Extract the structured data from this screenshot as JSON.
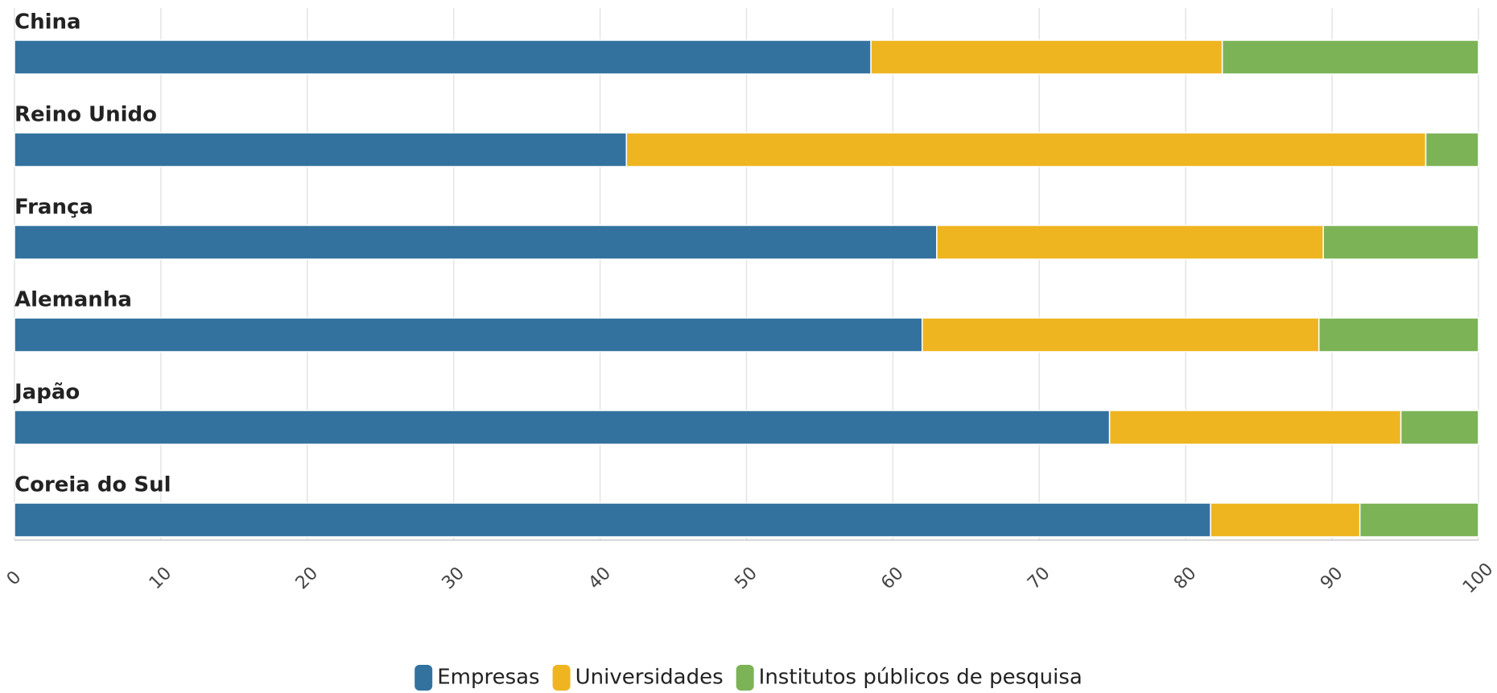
{
  "chart_data": {
    "type": "stacked_barh",
    "categories": [
      "China",
      "Reino Unido",
      "França",
      "Alemanha",
      "Japão",
      "Coreia do Sul"
    ],
    "series": [
      {
        "name": "Empresas",
        "color": "#33729f",
        "values": [
          58.5,
          41.8,
          63.0,
          62.0,
          74.8,
          81.7
        ]
      },
      {
        "name": "Universidades",
        "color": "#efb521",
        "values": [
          24.0,
          54.6,
          26.4,
          27.1,
          19.9,
          10.2
        ]
      },
      {
        "name": "Institutos públicos de pesquisa",
        "color": "#7cb357",
        "values": [
          17.5,
          3.6,
          10.6,
          10.9,
          5.3,
          8.1
        ]
      }
    ],
    "xlim": [
      0,
      100
    ],
    "xticks": [
      0,
      10,
      20,
      30,
      40,
      50,
      60,
      70,
      80,
      90,
      100
    ],
    "grid": true,
    "legend": "bottom"
  }
}
